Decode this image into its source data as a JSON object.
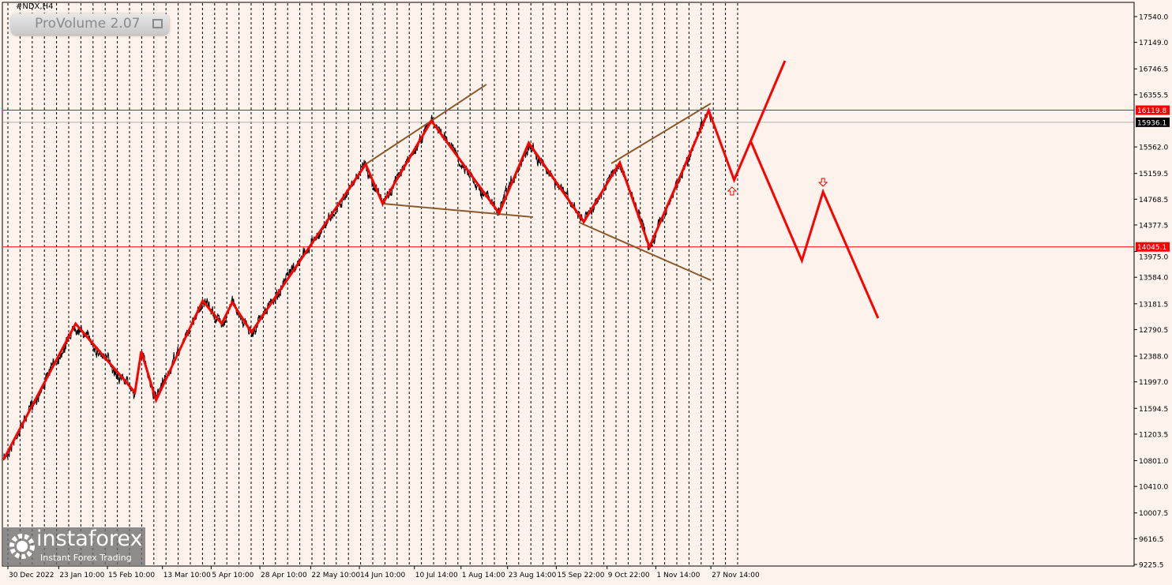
{
  "header": {
    "symbol": "#NDX,H4",
    "indicator": "ProVolume 2.07"
  },
  "logo": {
    "name": "instaforex",
    "tagline": "Instant Forex Trading"
  },
  "chart_data": {
    "type": "line",
    "title": "#NDX,H4",
    "y_ticks": [
      17540.0,
      17149.0,
      16746.5,
      16355.5,
      15562.0,
      15159.5,
      14768.5,
      14377.5,
      13975.0,
      13584.0,
      13181.5,
      12790.5,
      12388.0,
      11997.0,
      11594.5,
      11203.5,
      10801.0,
      10410.0,
      10007.5,
      9616.5,
      9225.5
    ],
    "y_tick_labels": [
      "17540.0",
      "17149.0",
      "16746.5",
      "16355.5",
      "15562.0",
      "15159.5",
      "14768.5",
      "14377.5",
      "13975.0",
      "13584.0",
      "13181.5",
      "12790.5",
      "12388.0",
      "11997.0",
      "11594.5",
      "11203.5",
      "10801.0",
      "10410.0",
      "10007.5",
      "9616.5",
      "9225.5"
    ],
    "ylim": [
      9225.5,
      17540.0
    ],
    "x_tick_labels": [
      "30 Dec 2022",
      "23 Jan 10:00",
      "15 Feb 10:00",
      "13 Mar 10:00",
      "5 Apr 10:00",
      "28 Apr 10:00",
      "22 May 10:00",
      "14 Jun 10:00",
      "10 Jul 14:00",
      "1 Aug 14:00",
      "23 Aug 14:00",
      "15 Sep 22:00",
      "9 Oct 22:00",
      "1 Nov 14:00",
      "27 Nov 14:00"
    ],
    "x_tick_dates": [
      "2022-12-30",
      "2023-01-23",
      "2023-02-15",
      "2023-03-13",
      "2023-04-05",
      "2023-04-28",
      "2023-05-22",
      "2023-06-14",
      "2023-07-10",
      "2023-08-01",
      "2023-08-23",
      "2023-09-15",
      "2023-10-09",
      "2023-11-01",
      "2023-11-27"
    ],
    "grid": "vertical dashed",
    "levels": [
      {
        "price": 16119.8,
        "label": "16119.8",
        "color": "#ff0000"
      },
      {
        "price": 14045.1,
        "label": "14045.1",
        "color": "#ff0000"
      }
    ],
    "current_price": {
      "price": 15936.1,
      "label": "15936.1",
      "color": "#000000"
    },
    "price_color": "#000000",
    "wave_color": "#ff0000",
    "trendline_color": "#8b5a2b",
    "wave_pivots": [
      [
        "2022-12-28",
        10819
      ],
      [
        "2023-01-31",
        12880
      ],
      [
        "2023-02-28",
        11837
      ],
      [
        "2023-03-03",
        12460
      ],
      [
        "2023-03-10",
        11718
      ],
      [
        "2023-04-01",
        13227
      ],
      [
        "2023-04-10",
        12880
      ],
      [
        "2023-04-15",
        13203
      ],
      [
        "2023-04-24",
        12748
      ],
      [
        "2023-06-17",
        15300
      ],
      [
        "2023-06-25",
        14701
      ],
      [
        "2023-07-18",
        15959
      ],
      [
        "2023-08-19",
        14557
      ],
      [
        "2023-09-02",
        15623
      ],
      [
        "2023-09-28",
        14425
      ],
      [
        "2023-10-15",
        15324
      ],
      [
        "2023-10-29",
        14042
      ],
      [
        "2023-11-26",
        16115
      ],
      [
        "2023-12-08",
        15060
      ],
      [
        "2024-01-01",
        16869
      ]
    ],
    "projection_pivots": [
      [
        "2023-12-16",
        15635
      ],
      [
        "2024-01-09",
        13838
      ],
      [
        "2024-01-19",
        14881
      ],
      [
        "2024-02-14",
        12963
      ]
    ],
    "trendlines": [
      [
        [
          "2023-06-17",
          15300
        ],
        [
          "2023-08-13",
          16510
        ]
      ],
      [
        [
          "2023-06-25",
          14701
        ],
        [
          "2023-09-04",
          14497
        ]
      ],
      [
        [
          "2023-10-11",
          15312
        ],
        [
          "2023-11-27",
          16222
        ]
      ],
      [
        [
          "2023-09-26",
          14413
        ],
        [
          "2023-11-27",
          13539
        ]
      ]
    ],
    "arrows": [
      {
        "dir": "up",
        "date": "2023-12-07",
        "price": 14893
      },
      {
        "dir": "down",
        "date": "2024-01-19",
        "price": 15024
      }
    ]
  }
}
